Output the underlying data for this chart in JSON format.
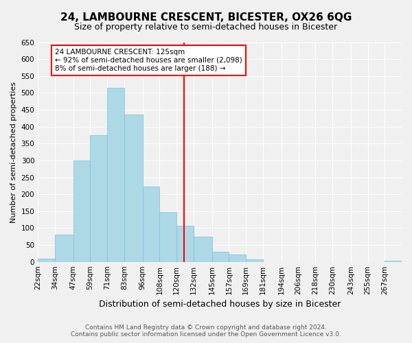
{
  "title": "24, LAMBOURNE CRESCENT, BICESTER, OX26 6QG",
  "subtitle": "Size of property relative to semi-detached houses in Bicester",
  "xlabel": "Distribution of semi-detached houses by size in Bicester",
  "ylabel": "Number of semi-detached properties",
  "bin_labels": [
    "22sqm",
    "34sqm",
    "47sqm",
    "59sqm",
    "71sqm",
    "83sqm",
    "96sqm",
    "108sqm",
    "120sqm",
    "132sqm",
    "145sqm",
    "157sqm",
    "169sqm",
    "181sqm",
    "194sqm",
    "206sqm",
    "218sqm",
    "230sqm",
    "243sqm",
    "255sqm",
    "267sqm"
  ],
  "bin_edges": [
    22,
    34,
    47,
    59,
    71,
    83,
    96,
    108,
    120,
    132,
    145,
    157,
    169,
    181,
    194,
    206,
    218,
    230,
    243,
    255,
    267,
    279
  ],
  "bar_heights": [
    10,
    80,
    300,
    375,
    515,
    435,
    222,
    148,
    107,
    75,
    30,
    22,
    8,
    0,
    0,
    0,
    0,
    0,
    0,
    0,
    3
  ],
  "bar_color": "#add8e6",
  "bar_edge_color": "#7dc0d8",
  "vline_x": 125,
  "vline_color": "red",
  "annotation_title": "24 LAMBOURNE CRESCENT: 125sqm",
  "annotation_line1": "← 92% of semi-detached houses are smaller (2,098)",
  "annotation_line2": "8% of semi-detached houses are larger (188) →",
  "annotation_box_facecolor": "white",
  "annotation_box_edgecolor": "red",
  "ylim": [
    0,
    650
  ],
  "yticks": [
    0,
    50,
    100,
    150,
    200,
    250,
    300,
    350,
    400,
    450,
    500,
    550,
    600,
    650
  ],
  "footer_line1": "Contains HM Land Registry data © Crown copyright and database right 2024.",
  "footer_line2": "Contains public sector information licensed under the Open Government Licence v3.0.",
  "bg_color": "#f0f0f0",
  "grid_color": "white",
  "title_fontsize": 11,
  "subtitle_fontsize": 9,
  "ylabel_fontsize": 8,
  "xlabel_fontsize": 9,
  "tick_fontsize": 7.5,
  "footer_fontsize": 6.5
}
